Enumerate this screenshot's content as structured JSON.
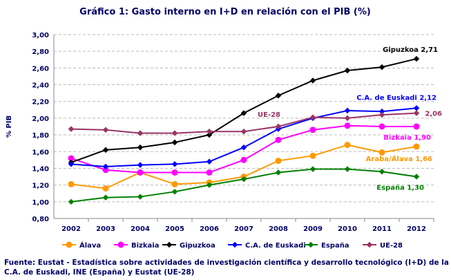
{
  "chart_data": {
    "type": "line",
    "title": "Gráfico 1: Gasto interno en I+D en relación con el PIB (%)",
    "ylabel": "% PIB",
    "xlabel": "",
    "ylim": [
      0.8,
      3.0
    ],
    "yticks": [
      "0,80",
      "1,00",
      "1,20",
      "1,40",
      "1,60",
      "1,80",
      "2,00",
      "2,20",
      "2,40",
      "2,60",
      "2,80",
      "3,00"
    ],
    "categories": [
      "2002",
      "2003",
      "2004",
      "2005",
      "2006",
      "2007",
      "2008",
      "2009",
      "2010",
      "2011",
      "2012"
    ],
    "grid": true,
    "legend_placement": "bottom",
    "series": [
      {
        "name": "Álava",
        "color": "#FF9900",
        "marker": "circle",
        "values": [
          1.21,
          1.16,
          1.35,
          1.21,
          1.23,
          1.3,
          1.49,
          1.55,
          1.68,
          1.59,
          1.66
        ],
        "end_label": "Araba/Álava 1,66"
      },
      {
        "name": "Bizkaia",
        "color": "#FF00FF",
        "marker": "circle",
        "values": [
          1.52,
          1.38,
          1.35,
          1.35,
          1.35,
          1.5,
          1.74,
          1.86,
          1.91,
          1.9,
          1.9
        ],
        "end_label": "Bizkaia 1,90"
      },
      {
        "name": "Gipuzkoa",
        "color": "#000000",
        "marker": "diamond",
        "values": [
          1.47,
          1.62,
          1.65,
          1.71,
          1.8,
          2.06,
          2.27,
          2.45,
          2.57,
          2.61,
          2.71
        ],
        "end_label": "Gipuzkoa 2,71"
      },
      {
        "name": "C.A. de Euskadi",
        "color": "#0000FF",
        "marker": "diamond",
        "values": [
          1.45,
          1.42,
          1.44,
          1.45,
          1.48,
          1.65,
          1.87,
          2.0,
          2.09,
          2.08,
          2.12
        ],
        "end_label": "C.A. de Euskadi 2,12"
      },
      {
        "name": "España",
        "color": "#008000",
        "marker": "diamond",
        "values": [
          1.0,
          1.05,
          1.06,
          1.12,
          1.2,
          1.27,
          1.35,
          1.39,
          1.39,
          1.36,
          1.3
        ],
        "end_label": "España 1,30"
      },
      {
        "name": "UE-28",
        "color": "#993366",
        "marker": "diamond",
        "values": [
          1.87,
          1.86,
          1.82,
          1.82,
          1.84,
          1.84,
          1.9,
          2.01,
          2.0,
          2.04,
          2.06
        ],
        "end_label": "2,06",
        "mid_label": "UE-28"
      }
    ]
  },
  "source": "Fuente: Eustat - Estadística sobre actividades de investigación científica y desarrollo tecnológico (I+D) de la C.A. de Euskadi, INE (España) y Eustat (UE-28)"
}
